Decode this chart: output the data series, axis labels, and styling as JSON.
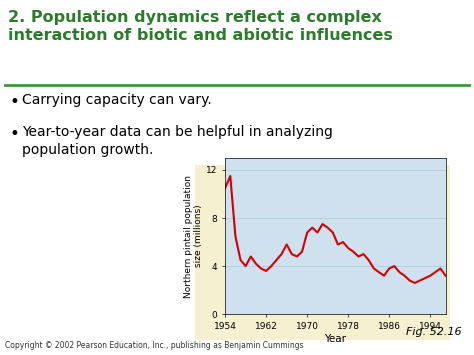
{
  "title_line1": "2. Population dynamics reflect a complex",
  "title_line2": "interaction of biotic and abiotic influences",
  "title_color": "#2d7a2d",
  "bullet1": "Carrying capacity can vary.",
  "bullet2": "Year-to-year data can be helpful in analyzing\npopulation growth.",
  "bg_color": "#ffffff",
  "chart_area_bg": "#f5f0d0",
  "fig_label": "Fig. 52.16",
  "copyright": "Copyright © 2002 Pearson Education, Inc., publishing as Benjamin Cummings",
  "chart_bg": "#cfe0ef",
  "separator_color": "#3a9a3a",
  "ylabel": "Northern pintail population\nsize (millions)",
  "xlabel": "Year",
  "yticks": [
    0,
    4,
    8,
    12
  ],
  "xticks": [
    1954,
    1962,
    1970,
    1978,
    1986,
    1994
  ],
  "years": [
    1954,
    1955,
    1956,
    1957,
    1958,
    1959,
    1960,
    1961,
    1962,
    1963,
    1964,
    1965,
    1966,
    1967,
    1968,
    1969,
    1970,
    1971,
    1972,
    1973,
    1974,
    1975,
    1976,
    1977,
    1978,
    1979,
    1980,
    1981,
    1982,
    1983,
    1984,
    1985,
    1986,
    1987,
    1988,
    1989,
    1990,
    1991,
    1992,
    1993,
    1994,
    1995,
    1996,
    1997
  ],
  "pop": [
    10.5,
    11.5,
    6.5,
    4.5,
    4.0,
    4.8,
    4.2,
    3.8,
    3.6,
    4.0,
    4.5,
    5.0,
    5.8,
    5.0,
    4.8,
    5.2,
    6.8,
    7.2,
    6.8,
    7.5,
    7.2,
    6.8,
    5.8,
    6.0,
    5.5,
    5.2,
    4.8,
    5.0,
    4.5,
    3.8,
    3.5,
    3.2,
    3.8,
    4.0,
    3.5,
    3.2,
    2.8,
    2.6,
    2.8,
    3.0,
    3.2,
    3.5,
    3.8,
    3.2
  ],
  "line_color": "#cc0000",
  "line_width": 1.5,
  "ylim": [
    0,
    13
  ],
  "xlim": [
    1954,
    1997
  ]
}
